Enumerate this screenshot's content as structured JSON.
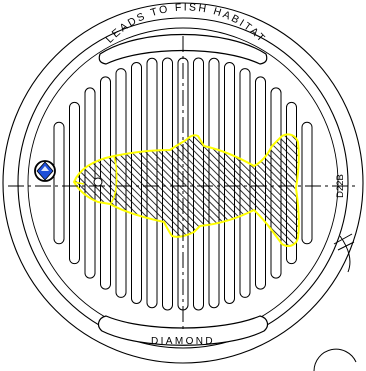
{
  "drawing": {
    "top_label": "LEADS TO FISH HABITAT",
    "bottom_label": "DIAMOND",
    "side_code": "D22B"
  },
  "icons": {
    "logo": "diamond-logo-icon",
    "fish": "fish-outline-icon"
  },
  "colors": {
    "line": "#000000",
    "fish_outline": "#ffff00",
    "logo_fill": "#1e4fd8",
    "background": "#ffffff"
  }
}
